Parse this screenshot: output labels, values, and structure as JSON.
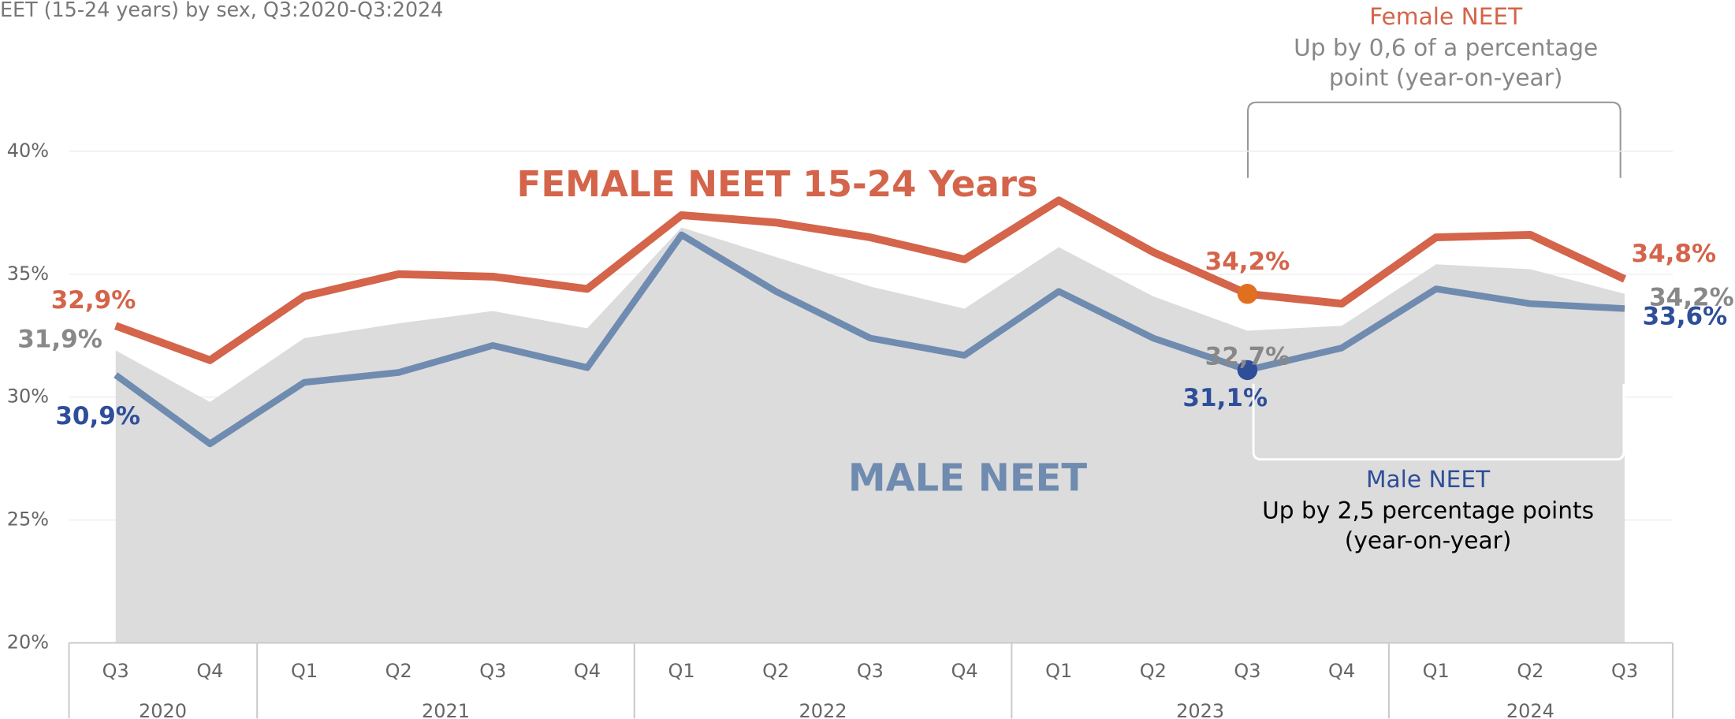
{
  "chart_data": {
    "type": "line",
    "title": "EET (15-24 years) by sex, Q3:2020-Q3:2024",
    "categories": [
      "Q3",
      "Q4",
      "Q1",
      "Q2",
      "Q3",
      "Q4",
      "Q1",
      "Q2",
      "Q3",
      "Q4",
      "Q1",
      "Q2",
      "Q3",
      "Q4",
      "Q1",
      "Q2",
      "Q3"
    ],
    "years": [
      "2020",
      "2021",
      "2022",
      "2023",
      "2024"
    ],
    "series": [
      {
        "color": "#dcdcdc",
        "values": [
          31.9,
          29.8,
          32.4,
          33.0,
          33.5,
          32.8,
          36.9,
          35.7,
          34.5,
          33.6,
          36.1,
          34.1,
          32.7,
          32.9,
          35.4,
          35.2,
          34.2
        ],
        "value_labels": [
          "31,9%",
          null,
          null,
          null,
          null,
          null,
          null,
          null,
          null,
          null,
          null,
          null,
          "32,7%",
          null,
          null,
          null,
          "34,2%"
        ]
      },
      {
        "name": "FEMALE NEET 15-24 Years",
        "color": "#d4644a",
        "values": [
          32.9,
          31.5,
          34.1,
          35.0,
          34.9,
          34.4,
          37.4,
          37.1,
          36.5,
          35.6,
          38.0,
          35.9,
          34.2,
          33.8,
          36.5,
          36.6,
          34.8
        ],
        "value_labels": [
          "32,9%",
          null,
          null,
          null,
          null,
          null,
          null,
          null,
          null,
          null,
          null,
          null,
          "34,2%",
          null,
          null,
          null,
          "34,8%"
        ]
      },
      {
        "name": "MALE NEET",
        "color": "#6f8bb0",
        "values": [
          30.9,
          28.1,
          30.6,
          31.0,
          32.1,
          31.2,
          36.6,
          34.3,
          32.4,
          31.7,
          34.3,
          32.4,
          31.1,
          32.0,
          34.4,
          33.8,
          33.6
        ],
        "value_labels": [
          "30,9%",
          null,
          null,
          null,
          null,
          null,
          null,
          null,
          null,
          null,
          null,
          null,
          "31,1%",
          null,
          null,
          null,
          "33,6%"
        ]
      }
    ],
    "ylim": [
      20,
      40
    ],
    "yticks": [
      {
        "value": 20,
        "label": "20%"
      },
      {
        "value": 25,
        "label": "25%"
      },
      {
        "value": 30,
        "label": "30%"
      },
      {
        "value": 35,
        "label": "35%"
      },
      {
        "value": 40,
        "label": "40%"
      }
    ],
    "grid": true,
    "annotations": {
      "female_head": "Female NEET",
      "female_line1": "Up by 0,6 of a percentage",
      "female_line2": "point (year-on-year)",
      "male_head": "Male NEET",
      "male_line1": "Up by 2,5 percentage points",
      "male_line2": "(year-on-year)"
    }
  }
}
